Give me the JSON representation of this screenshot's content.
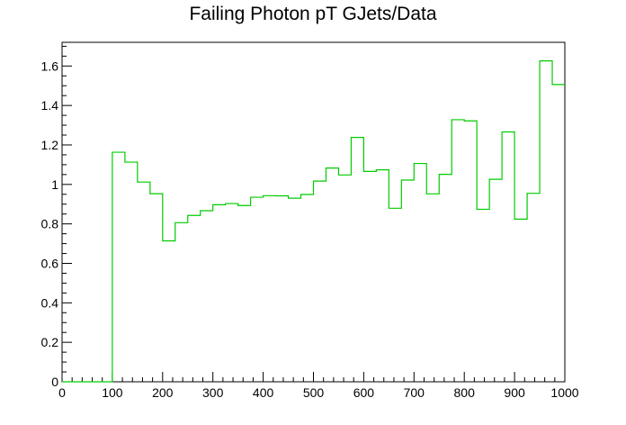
{
  "chart_data": {
    "type": "histogram-step",
    "title": "Failing Photon pT GJets/Data",
    "xlabel": "",
    "ylabel": "",
    "xlim": [
      0,
      1000
    ],
    "ylim": [
      0,
      1.72
    ],
    "x_ticks": [
      0,
      100,
      200,
      300,
      400,
      500,
      600,
      700,
      800,
      900,
      1000
    ],
    "x_tick_labels": [
      "0",
      "100",
      "200",
      "300",
      "400",
      "500",
      "600",
      "700",
      "800",
      "900",
      "1000"
    ],
    "y_ticks": [
      0,
      0.2,
      0.4,
      0.6,
      0.8,
      1.0,
      1.2,
      1.4,
      1.6
    ],
    "y_tick_labels": [
      "0",
      "0.2",
      "0.4",
      "0.6",
      "0.8",
      "1",
      "1.2",
      "1.4",
      "1.6"
    ],
    "grid": false,
    "line_color": "#00cc00",
    "series": [
      {
        "bin_width": 25,
        "bin_low_edges": [
          0,
          25,
          50,
          75,
          100,
          125,
          150,
          175,
          200,
          225,
          250,
          275,
          300,
          325,
          350,
          375,
          400,
          425,
          450,
          475,
          500,
          525,
          550,
          575,
          600,
          625,
          650,
          675,
          700,
          725,
          750,
          775,
          800,
          825,
          850,
          875,
          900,
          925,
          950,
          975
        ],
        "values": [
          0,
          0,
          0,
          0,
          1.163,
          1.113,
          1.012,
          0.953,
          0.714,
          0.806,
          0.843,
          0.867,
          0.897,
          0.903,
          0.893,
          0.935,
          0.943,
          0.942,
          0.93,
          0.949,
          1.017,
          1.083,
          1.048,
          1.238,
          1.066,
          1.074,
          0.879,
          1.022,
          1.106,
          0.952,
          1.051,
          1.328,
          1.322,
          0.874,
          1.026,
          1.266,
          0.824,
          0.955,
          1.626,
          1.506
        ]
      }
    ]
  }
}
